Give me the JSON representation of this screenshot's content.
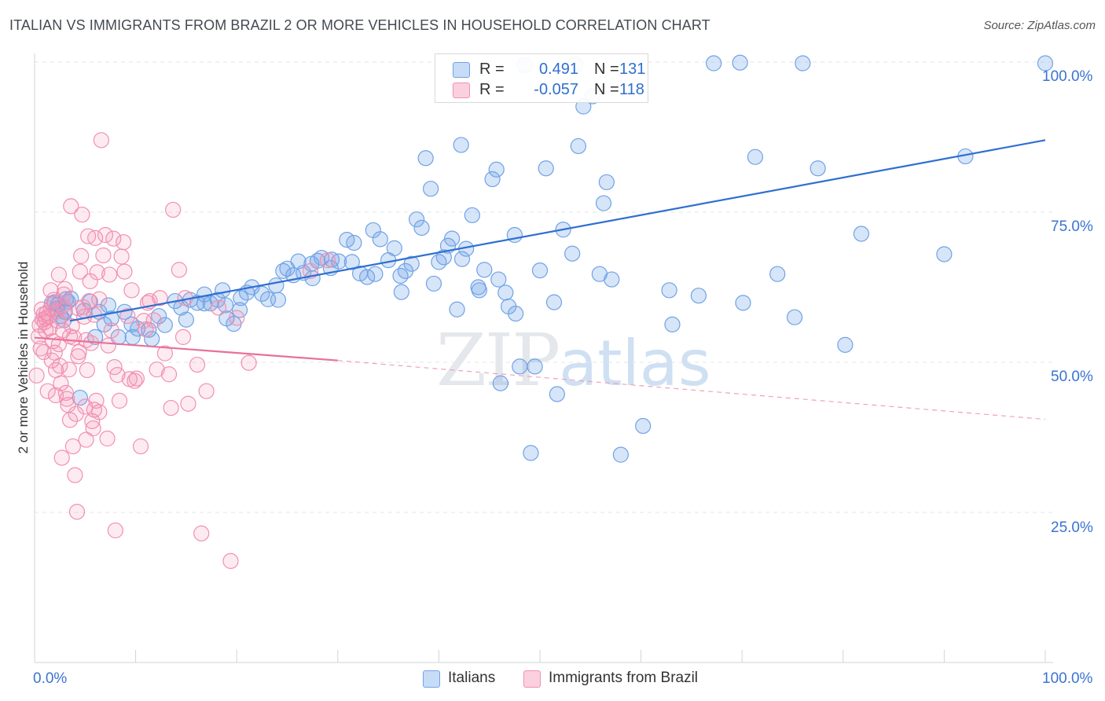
{
  "title": "ITALIAN VS IMMIGRANTS FROM BRAZIL 2 OR MORE VEHICLES IN HOUSEHOLD CORRELATION CHART",
  "source": "Source: ZipAtlas.com",
  "watermark": {
    "zip": "ZIP",
    "atlas": "atlas"
  },
  "legend": {
    "r_label": "R =",
    "n_label": "N =",
    "rows": [
      {
        "name": "Italians",
        "r": "0.491",
        "n": "131",
        "color": "#6fa3e6"
      },
      {
        "name": "Immigrants from Brazil",
        "r": "-0.057",
        "n": "118",
        "color": "#f28fb1"
      }
    ]
  },
  "axes": {
    "ylabel": "2 or more Vehicles in Household",
    "x_min_label": "0.0%",
    "x_max_label": "100.0%",
    "y_tick_labels": [
      "100.0%",
      "75.0%",
      "50.0%",
      "25.0%"
    ]
  },
  "chart_data": {
    "type": "scatter",
    "title": "ITALIAN VS IMMIGRANTS FROM BRAZIL 2 OR MORE VEHICLES IN HOUSEHOLD CORRELATION CHART",
    "xlabel": "",
    "ylabel": "2 or more Vehicles in Household",
    "xlim": [
      0,
      100
    ],
    "ylim": [
      0,
      103
    ],
    "y_ticks": [
      25,
      50,
      75,
      100
    ],
    "grid": "horizontal dashed",
    "legend_position": "top-center",
    "series": [
      {
        "name": "Italians",
        "color": "#6fa3e6",
        "r": 0.491,
        "n": 131,
        "trend": {
          "x": [
            3.5,
            100
          ],
          "y": [
            56.9,
            87.0
          ],
          "style": "solid"
        },
        "points": [
          [
            1.7,
            59.8
          ],
          [
            2.0,
            60.0
          ],
          [
            2.3,
            59.6
          ],
          [
            2.6,
            57.7
          ],
          [
            3.0,
            58.4
          ],
          [
            3.3,
            60.1
          ],
          [
            3.6,
            60.6
          ],
          [
            4.5,
            44.1
          ],
          [
            6.0,
            54.2
          ],
          [
            6.4,
            58.4
          ],
          [
            6.9,
            56.3
          ],
          [
            7.3,
            59.5
          ],
          [
            8.3,
            54.2
          ],
          [
            9.7,
            54.2
          ],
          [
            10.2,
            55.6
          ],
          [
            11.3,
            55.4
          ],
          [
            11.6,
            53.9
          ],
          [
            12.3,
            57.7
          ],
          [
            13.9,
            60.2
          ],
          [
            14.5,
            59.1
          ],
          [
            15.4,
            60.4
          ],
          [
            16.1,
            59.9
          ],
          [
            16.8,
            61.3
          ],
          [
            17.4,
            59.8
          ],
          [
            18.1,
            60.4
          ],
          [
            18.6,
            62.0
          ],
          [
            19.0,
            57.3
          ],
          [
            19.7,
            56.4
          ],
          [
            20.3,
            58.7
          ],
          [
            21.0,
            61.6
          ],
          [
            21.5,
            62.5
          ],
          [
            22.5,
            61.4
          ],
          [
            23.1,
            60.5
          ],
          [
            24.1,
            60.4
          ],
          [
            25.0,
            65.6
          ],
          [
            25.6,
            64.5
          ],
          [
            26.1,
            66.8
          ],
          [
            26.6,
            64.9
          ],
          [
            27.4,
            66.4
          ],
          [
            28.0,
            66.9
          ],
          [
            28.4,
            67.4
          ],
          [
            29.3,
            65.7
          ],
          [
            30.1,
            66.8
          ],
          [
            30.9,
            70.4
          ],
          [
            31.6,
            69.9
          ],
          [
            32.2,
            64.8
          ],
          [
            32.9,
            64.2
          ],
          [
            33.5,
            72.0
          ],
          [
            34.2,
            70.5
          ],
          [
            35.0,
            67.0
          ],
          [
            35.6,
            69.0
          ],
          [
            36.3,
            61.7
          ],
          [
            36.7,
            65.2
          ],
          [
            37.3,
            66.4
          ],
          [
            37.8,
            73.8
          ],
          [
            38.3,
            72.4
          ],
          [
            38.7,
            84.0
          ],
          [
            39.2,
            78.9
          ],
          [
            39.5,
            63.1
          ],
          [
            40.5,
            67.5
          ],
          [
            40.9,
            69.4
          ],
          [
            41.3,
            70.6
          ],
          [
            41.8,
            58.8
          ],
          [
            42.2,
            86.2
          ],
          [
            42.7,
            68.9
          ],
          [
            43.3,
            74.5
          ],
          [
            43.9,
            62.5
          ],
          [
            44.5,
            65.4
          ],
          [
            45.3,
            80.5
          ],
          [
            45.7,
            82.1
          ],
          [
            46.1,
            46.5
          ],
          [
            46.6,
            61.6
          ],
          [
            46.9,
            59.3
          ],
          [
            47.5,
            71.2
          ],
          [
            48.0,
            49.3
          ],
          [
            49.1,
            34.9
          ],
          [
            49.5,
            49.3
          ],
          [
            50.0,
            65.3
          ],
          [
            50.6,
            82.3
          ],
          [
            51.7,
            44.7
          ],
          [
            52.3,
            72.1
          ],
          [
            53.2,
            68.1
          ],
          [
            53.8,
            86.0
          ],
          [
            54.3,
            92.6
          ],
          [
            55.2,
            94.3
          ],
          [
            55.9,
            64.7
          ],
          [
            56.3,
            76.5
          ],
          [
            56.6,
            80.0
          ],
          [
            58.0,
            34.6
          ],
          [
            60.2,
            39.4
          ],
          [
            62.8,
            62.0
          ],
          [
            63.1,
            56.3
          ],
          [
            67.2,
            99.8
          ],
          [
            69.8,
            99.9
          ],
          [
            70.1,
            59.9
          ],
          [
            71.3,
            84.2
          ],
          [
            75.2,
            57.5
          ],
          [
            76.0,
            99.8
          ],
          [
            77.5,
            82.3
          ],
          [
            80.2,
            52.9
          ],
          [
            81.8,
            71.4
          ],
          [
            90.0,
            68.0
          ],
          [
            92.1,
            84.3
          ],
          [
            100.0,
            99.8
          ],
          [
            48.5,
            99.5
          ],
          [
            53.5,
            99.6
          ],
          [
            33.7,
            64.7
          ],
          [
            23.9,
            62.8
          ],
          [
            18.9,
            59.5
          ],
          [
            16.8,
            59.8
          ],
          [
            4.9,
            58.6
          ],
          [
            5.5,
            60.1
          ],
          [
            9.6,
            56.3
          ],
          [
            7.6,
            57.3
          ],
          [
            2.2,
            58.9
          ],
          [
            3.1,
            60.5
          ],
          [
            27.5,
            64.0
          ],
          [
            31.4,
            66.7
          ],
          [
            42.3,
            67.2
          ],
          [
            45.9,
            63.8
          ],
          [
            8.9,
            58.4
          ],
          [
            12.9,
            56.2
          ],
          [
            15.0,
            57.1
          ],
          [
            20.4,
            60.7
          ],
          [
            24.6,
            65.2
          ],
          [
            29.4,
            67.1
          ],
          [
            36.2,
            64.4
          ],
          [
            40.0,
            66.7
          ],
          [
            44.0,
            62.0
          ],
          [
            47.6,
            58.1
          ],
          [
            51.4,
            60.0
          ],
          [
            57.1,
            63.8
          ],
          [
            65.7,
            61.1
          ],
          [
            73.5,
            64.7
          ],
          [
            2.9,
            57.0
          ]
        ]
      },
      {
        "name": "Immigrants from Brazil",
        "color": "#f28fb1",
        "r": -0.057,
        "n": 118,
        "trend": {
          "x": [
            0,
            30
          ],
          "y": [
            54.1,
            50.3
          ],
          "x_dashed_end": 100,
          "y_dashed_end": 40.5,
          "style": "solid then dashed"
        },
        "points": [
          [
            0.2,
            47.8
          ],
          [
            0.4,
            54.3
          ],
          [
            0.5,
            56.2
          ],
          [
            0.6,
            52.3
          ],
          [
            0.8,
            57.1
          ],
          [
            0.9,
            58.0
          ],
          [
            1.0,
            56.7
          ],
          [
            1.1,
            55.3
          ],
          [
            1.2,
            58.2
          ],
          [
            1.3,
            45.2
          ],
          [
            1.4,
            57.6
          ],
          [
            1.5,
            55.7
          ],
          [
            1.6,
            59.0
          ],
          [
            1.7,
            50.3
          ],
          [
            1.8,
            53.5
          ],
          [
            1.9,
            60.4
          ],
          [
            2.0,
            51.6
          ],
          [
            2.1,
            48.7
          ],
          [
            2.2,
            58.5
          ],
          [
            2.3,
            56.9
          ],
          [
            2.4,
            53.0
          ],
          [
            2.5,
            49.4
          ],
          [
            2.6,
            46.5
          ],
          [
            2.7,
            34.1
          ],
          [
            2.8,
            55.3
          ],
          [
            2.9,
            61.3
          ],
          [
            3.0,
            58.7
          ],
          [
            3.1,
            44.9
          ],
          [
            3.2,
            43.9
          ],
          [
            3.3,
            42.9
          ],
          [
            3.4,
            48.8
          ],
          [
            3.5,
            54.3
          ],
          [
            3.6,
            76.0
          ],
          [
            3.7,
            56.0
          ],
          [
            3.8,
            36.0
          ],
          [
            3.9,
            54.1
          ],
          [
            4.0,
            31.2
          ],
          [
            4.1,
            41.4
          ],
          [
            4.2,
            25.1
          ],
          [
            4.3,
            59.0
          ],
          [
            4.4,
            51.7
          ],
          [
            4.5,
            65.1
          ],
          [
            4.6,
            67.7
          ],
          [
            4.7,
            74.6
          ],
          [
            4.8,
            59.2
          ],
          [
            4.9,
            57.6
          ],
          [
            5.0,
            42.6
          ],
          [
            5.1,
            37.1
          ],
          [
            5.2,
            48.7
          ],
          [
            5.3,
            71.0
          ],
          [
            5.4,
            60.2
          ],
          [
            5.5,
            63.5
          ],
          [
            5.6,
            53.2
          ],
          [
            5.7,
            40.2
          ],
          [
            5.8,
            39.0
          ],
          [
            5.9,
            42.1
          ],
          [
            6.0,
            70.7
          ],
          [
            6.2,
            65.0
          ],
          [
            6.4,
            60.5
          ],
          [
            6.6,
            87.0
          ],
          [
            6.8,
            67.8
          ],
          [
            7.0,
            71.2
          ],
          [
            7.2,
            37.3
          ],
          [
            7.4,
            64.6
          ],
          [
            7.6,
            55.3
          ],
          [
            7.8,
            70.6
          ],
          [
            8.0,
            22.0
          ],
          [
            8.2,
            47.9
          ],
          [
            8.4,
            43.6
          ],
          [
            8.6,
            67.6
          ],
          [
            8.8,
            70.0
          ],
          [
            9.2,
            57.7
          ],
          [
            9.6,
            62.0
          ],
          [
            9.9,
            46.9
          ],
          [
            10.1,
            47.3
          ],
          [
            10.5,
            36.0
          ],
          [
            11.0,
            55.5
          ],
          [
            11.4,
            60.2
          ],
          [
            11.8,
            57.0
          ],
          [
            12.4,
            60.7
          ],
          [
            12.9,
            51.5
          ],
          [
            13.3,
            48.0
          ],
          [
            13.7,
            75.4
          ],
          [
            14.3,
            65.4
          ],
          [
            14.7,
            54.2
          ],
          [
            15.2,
            43.1
          ],
          [
            16.1,
            49.6
          ],
          [
            16.5,
            21.5
          ],
          [
            17.0,
            45.2
          ],
          [
            19.4,
            16.9
          ],
          [
            21.2,
            49.9
          ],
          [
            27.3,
            65.2
          ],
          [
            29.0,
            67.0
          ],
          [
            3.5,
            40.4
          ],
          [
            2.1,
            44.5
          ],
          [
            1.1,
            57.3
          ],
          [
            0.7,
            58.8
          ],
          [
            6.1,
            43.6
          ],
          [
            7.3,
            52.8
          ],
          [
            8.9,
            65.1
          ],
          [
            9.4,
            47.2
          ],
          [
            10.8,
            56.9
          ],
          [
            12.1,
            48.8
          ],
          [
            13.5,
            42.4
          ],
          [
            5.9,
            57.9
          ],
          [
            4.3,
            51.0
          ],
          [
            3.0,
            62.2
          ],
          [
            2.4,
            64.6
          ],
          [
            1.6,
            62.0
          ],
          [
            11.2,
            59.9
          ],
          [
            14.9,
            60.7
          ],
          [
            18.2,
            59.1
          ],
          [
            20.0,
            57.4
          ],
          [
            7.9,
            49.2
          ],
          [
            6.4,
            41.7
          ],
          [
            5.1,
            53.7
          ],
          [
            0.9,
            51.7
          ],
          [
            2.8,
            59.4
          ]
        ]
      }
    ]
  }
}
